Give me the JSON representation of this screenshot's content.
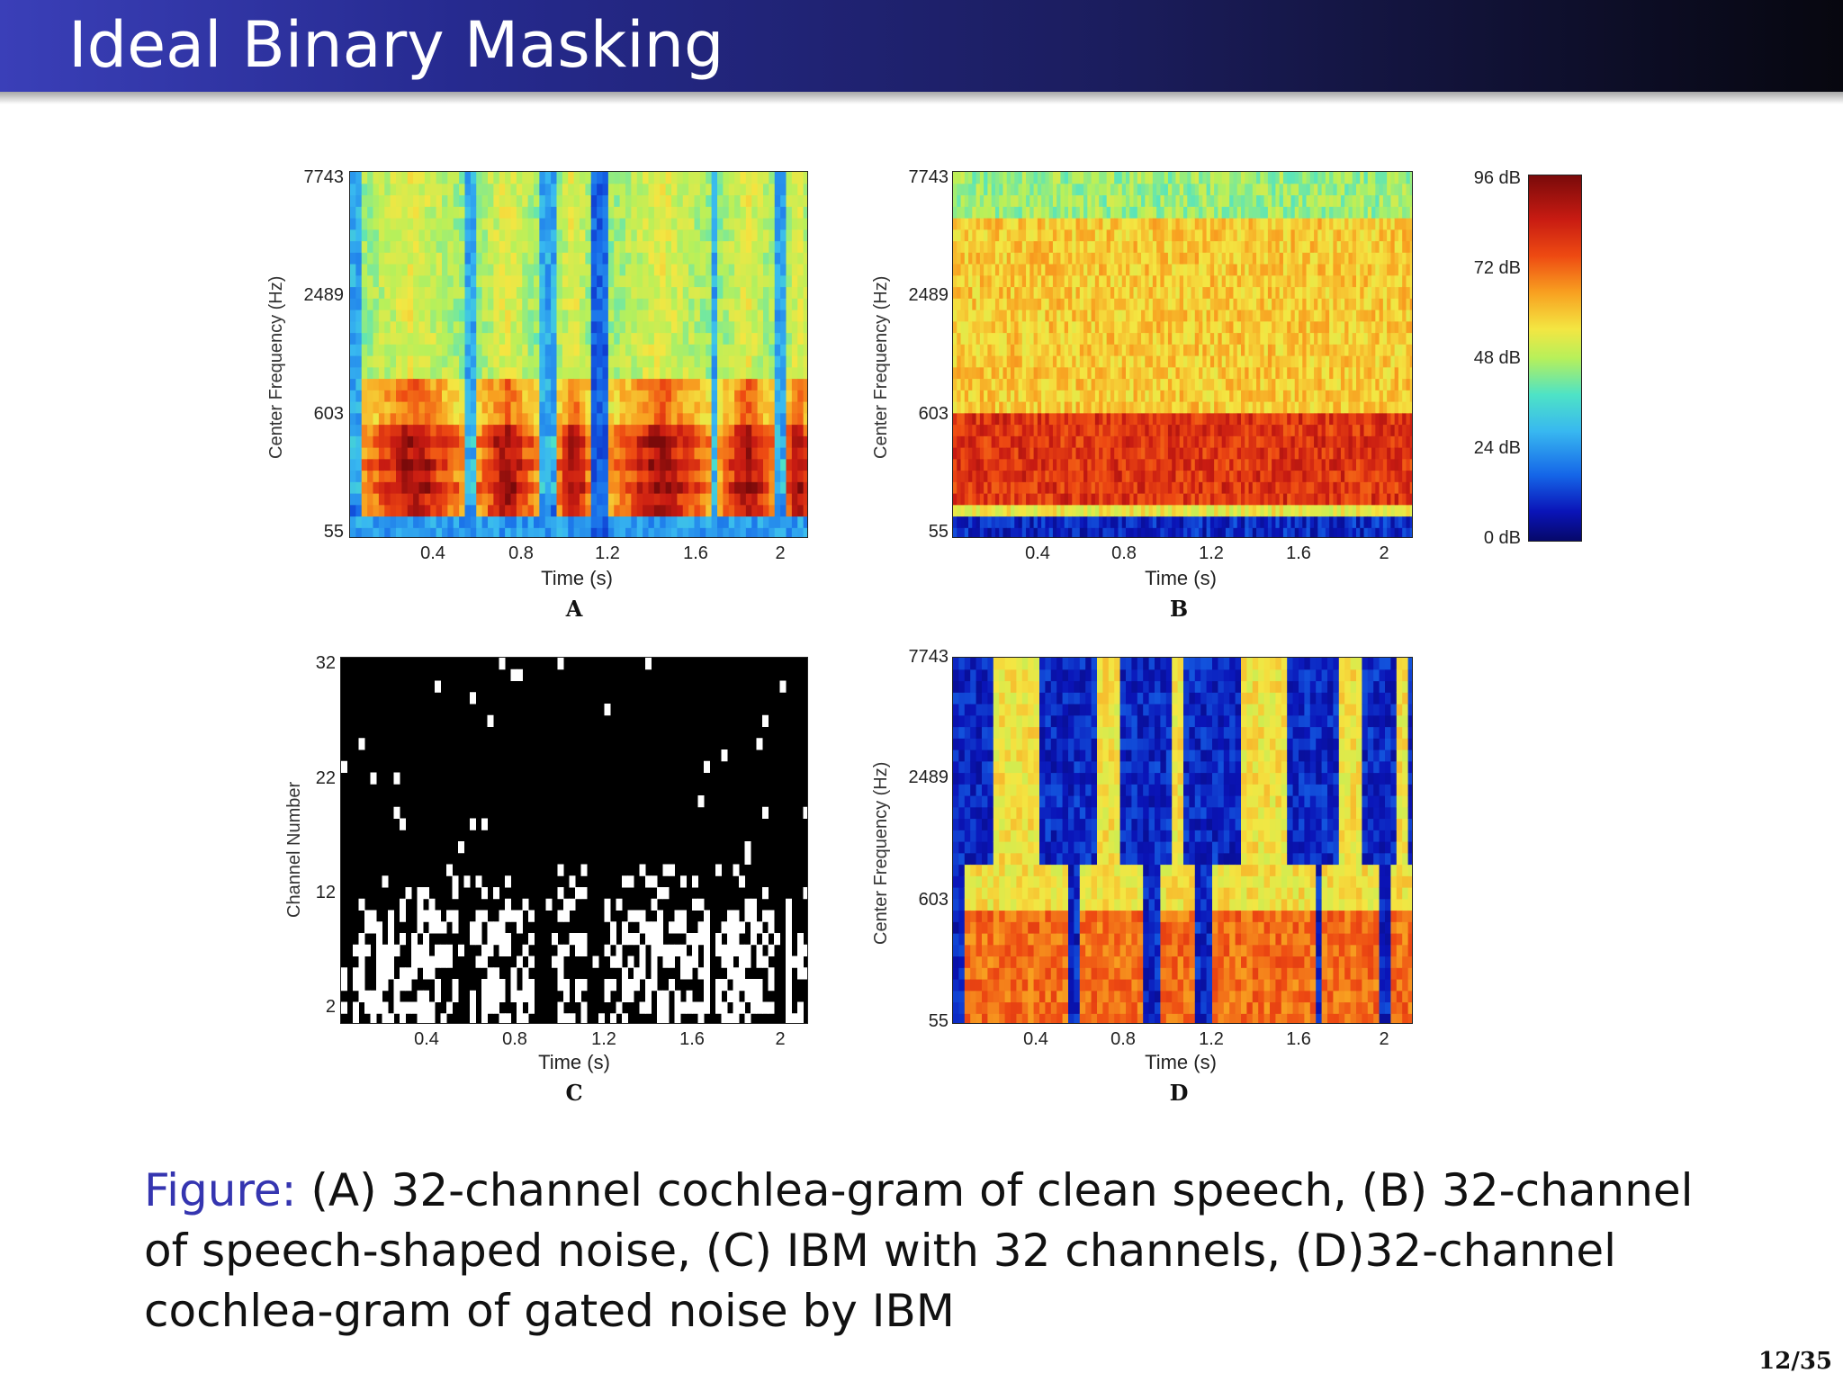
{
  "slide": {
    "title": "Ideal Binary Masking",
    "page_number": "12/35",
    "caption_lead": "Figure:",
    "caption_text": "(A) 32-channel cochlea-gram of clean speech, (B) 32-channel of speech-shaped noise, (C) IBM with 32 channels, (D)32-channel cochlea-gram of gated noise by IBM"
  },
  "colorbar": {
    "ticks": [
      "96 dB",
      "72 dB",
      "48 dB",
      "24 dB",
      "0 dB"
    ]
  },
  "panels": {
    "A": {
      "label": "A",
      "xlabel": "Time (s)",
      "ylabel": "Center Frequency (Hz)",
      "yticks": [
        "7743",
        "2489",
        "603",
        "55"
      ],
      "xticks": [
        "0.4",
        "0.8",
        "1.2",
        "1.6",
        "2"
      ]
    },
    "B": {
      "label": "B",
      "xlabel": "Time (s)",
      "ylabel": "Center Frequency (Hz)",
      "yticks": [
        "7743",
        "2489",
        "603",
        "55"
      ],
      "xticks": [
        "0.4",
        "0.8",
        "1.2",
        "1.6",
        "2"
      ]
    },
    "C": {
      "label": "C",
      "xlabel": "Time (s)",
      "ylabel": "Channel Number",
      "yticks": [
        "32",
        "22",
        "12",
        "2"
      ],
      "xticks": [
        "0.4",
        "0.8",
        "1.2",
        "1.6",
        "2"
      ]
    },
    "D": {
      "label": "D",
      "xlabel": "Time (s)",
      "ylabel": "Center Frequency (Hz)",
      "yticks": [
        "7743",
        "2489",
        "603",
        "55"
      ],
      "xticks": [
        "0.4",
        "0.8",
        "1.2",
        "1.6",
        "2"
      ]
    }
  }
}
